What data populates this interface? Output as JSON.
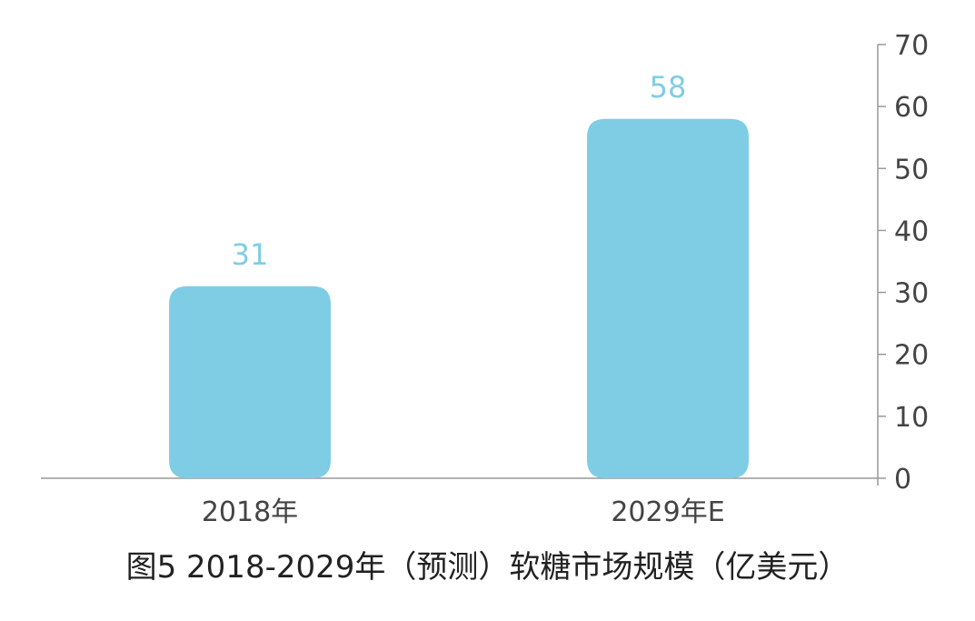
{
  "caption": "图5 2018-2029年（预测）软糖市场规模（亿美元）",
  "chart_data": {
    "type": "bar",
    "categories": [
      "2018年",
      "2029年E"
    ],
    "values": [
      31,
      58
    ],
    "data_labels": [
      "31",
      "58"
    ],
    "ylim": [
      0,
      70
    ],
    "yticks": [
      0,
      10,
      20,
      30,
      40,
      50,
      60,
      70
    ],
    "y_axis_side": "right",
    "grid": false,
    "legend": "none",
    "colors": {
      "bar": "#7fcde4",
      "data_label": "#7fcde4",
      "axis": "#999999",
      "tick_label": "#444444"
    }
  }
}
